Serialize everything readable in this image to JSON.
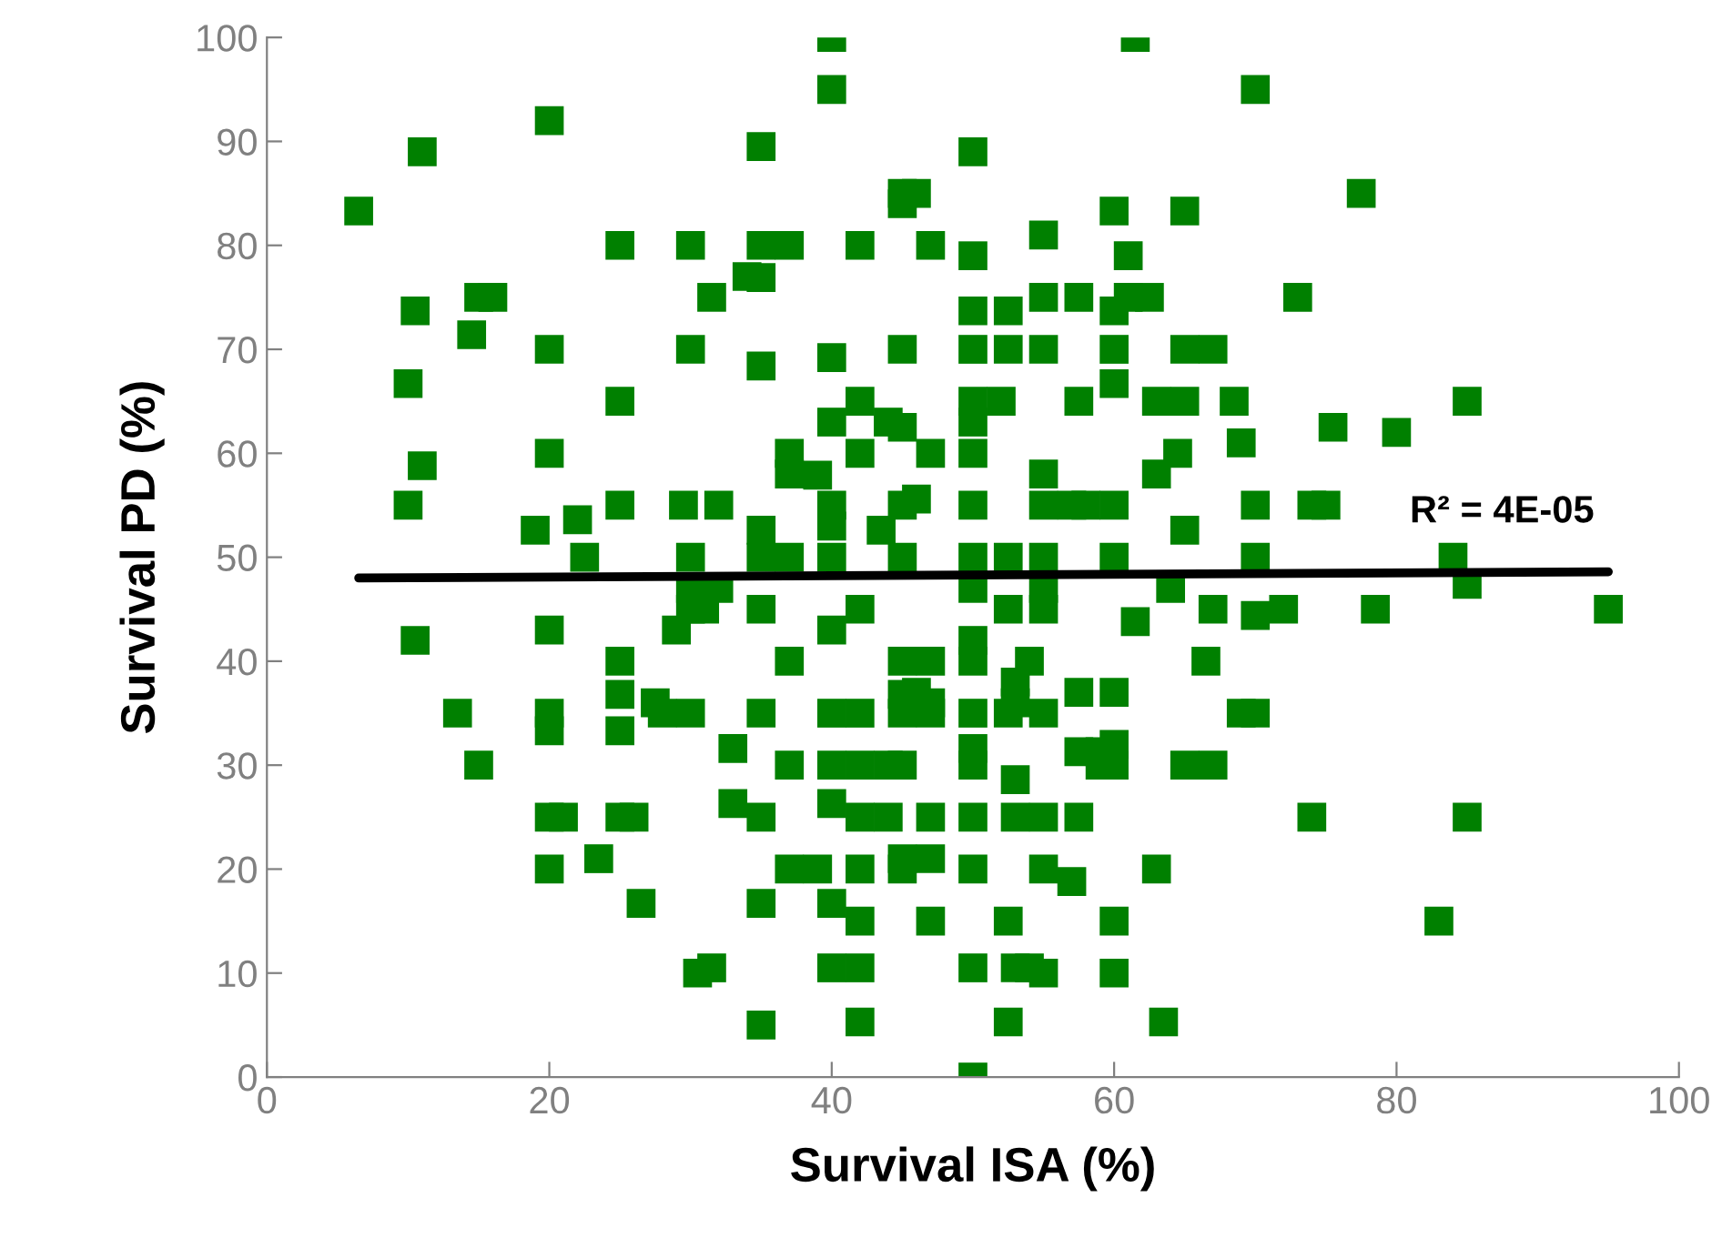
{
  "chart_data": {
    "type": "scatter",
    "xlabel": "Survival ISA (%)",
    "ylabel": "Survival PD (%)",
    "xlim": [
      0,
      100
    ],
    "xticks": [
      0,
      20,
      40,
      60,
      80,
      100
    ],
    "ylim": [
      0,
      100
    ],
    "yticks": [
      0,
      10,
      20,
      30,
      40,
      50,
      60,
      70,
      80,
      90,
      100
    ],
    "grid": false,
    "marker": "square",
    "annotations": [
      "R² = 4E-05"
    ],
    "series": [
      {
        "color": "#008000",
        "x": [
          6.5,
          11,
          10.5,
          10,
          14.5,
          15,
          16,
          10,
          11,
          10.5,
          13.5,
          15,
          20,
          20,
          20,
          20,
          20,
          20,
          20,
          20,
          19,
          21,
          22,
          22.5,
          23.5,
          25,
          25,
          25,
          25,
          25,
          25,
          25,
          26,
          26.5,
          27.5,
          28,
          29,
          29.5,
          30,
          30,
          30,
          30,
          30,
          30,
          30.5,
          31,
          31.5,
          32,
          32,
          31.5,
          33,
          33,
          34,
          35,
          35,
          35,
          35,
          35,
          35,
          35,
          35,
          35,
          35,
          35,
          37,
          37,
          37,
          37,
          37,
          37,
          37,
          39,
          39,
          40,
          40,
          40,
          40,
          40,
          40,
          40,
          40,
          40,
          40,
          40,
          40,
          40,
          42,
          42,
          42,
          42,
          42,
          42,
          42,
          42,
          42,
          42,
          42,
          43.5,
          44,
          44,
          44,
          45,
          45,
          45,
          45,
          45,
          45,
          45,
          45,
          45,
          45,
          45,
          45,
          46,
          46,
          46,
          47,
          47,
          47,
          47,
          47,
          47,
          47,
          47,
          50,
          50,
          50,
          50,
          50,
          50,
          50,
          50,
          50,
          50,
          50,
          50,
          50,
          50,
          50,
          50,
          50,
          50,
          50,
          52,
          52.5,
          52.5,
          52.5,
          52.5,
          52.5,
          52.5,
          52.5,
          53,
          53,
          53,
          53,
          53,
          54,
          54,
          55,
          55,
          55,
          55,
          55,
          55,
          55,
          55,
          55,
          55,
          55,
          55,
          57,
          57,
          57.5,
          57.5,
          57.5,
          57.5,
          57.5,
          58,
          59,
          59,
          60,
          60,
          60,
          60,
          60,
          60,
          60,
          60,
          60,
          60,
          60,
          61,
          61,
          61.5,
          61.5,
          62.5,
          63,
          63,
          63,
          63.5,
          64,
          64.5,
          65,
          65,
          65,
          65,
          65,
          66.5,
          67,
          67,
          67,
          68.5,
          69,
          69,
          70,
          70,
          70,
          70,
          70,
          72,
          73,
          74,
          74,
          75,
          75.5,
          77.5,
          78.5,
          80,
          83,
          84,
          85,
          85,
          85,
          95
        ],
        "values": [
          83.3,
          89,
          73.7,
          66.7,
          71.4,
          75,
          75,
          55,
          58.8,
          42,
          35,
          30,
          92,
          70,
          60,
          43,
          35,
          33.3,
          25,
          20,
          52.6,
          25,
          53.6,
          50,
          21,
          80,
          65,
          55,
          40,
          36.8,
          33.3,
          25,
          25,
          16.7,
          36,
          35,
          43,
          55,
          80,
          70,
          50,
          47,
          45,
          35,
          10,
          45,
          75,
          55,
          47,
          10.5,
          31.6,
          26.3,
          77,
          89.5,
          80,
          76.9,
          68.4,
          52.6,
          50,
          45,
          35,
          25,
          16.7,
          5,
          80,
          60,
          58,
          50,
          40,
          30,
          20,
          57.9,
          20,
          100,
          95,
          69.2,
          63,
          55,
          53,
          50,
          43,
          35,
          30,
          26.3,
          16.7,
          10.5,
          80,
          65,
          60,
          45,
          35,
          30,
          25,
          20,
          15,
          10.5,
          5.3,
          52.6,
          63,
          25,
          30,
          85,
          84,
          70,
          62.5,
          55,
          50,
          40,
          36.8,
          35,
          30,
          21,
          20,
          85,
          55.6,
          37,
          80,
          60,
          40,
          36,
          35,
          25,
          21,
          15,
          89,
          79,
          73.7,
          70,
          65,
          63,
          60,
          55,
          50,
          47,
          42,
          40,
          35,
          31.6,
          30,
          25,
          20,
          10.5,
          0,
          65,
          73.7,
          70,
          50,
          45,
          35,
          15,
          5.3,
          38,
          36,
          28.6,
          25,
          10.5,
          40,
          10.5,
          81,
          75,
          70,
          58,
          55,
          50,
          47,
          45,
          35,
          25,
          20,
          10,
          55,
          18.8,
          75,
          65,
          37,
          31.3,
          25,
          55,
          30,
          31.3,
          83.3,
          73.7,
          70,
          66.7,
          55,
          50,
          37,
          32,
          30,
          15,
          10,
          79,
          75,
          100,
          43.8,
          75,
          65,
          58,
          20,
          5.3,
          47,
          60,
          83.3,
          70,
          65,
          52.6,
          30,
          40,
          70,
          45,
          30,
          65,
          35,
          61,
          95,
          55,
          50,
          44.4,
          35,
          45,
          75,
          55,
          25,
          55,
          62.5,
          85,
          45,
          62,
          15,
          50,
          65,
          47.4,
          25,
          45
        ]
      },
      {
        "type": "line",
        "color": "#000000",
        "marker": "none",
        "line_style": "solid",
        "x": [
          6.5,
          95
        ],
        "values": [
          48.0,
          48.6
        ]
      }
    ]
  }
}
